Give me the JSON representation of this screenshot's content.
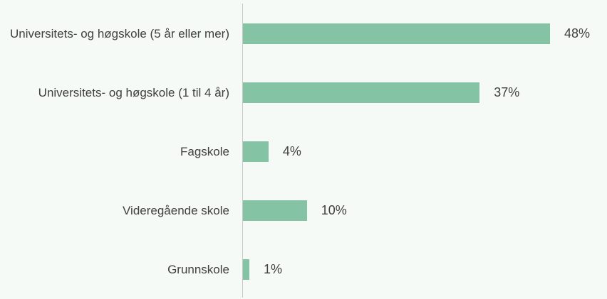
{
  "chart_data": {
    "type": "bar",
    "orientation": "horizontal",
    "color": "#84c4a4",
    "categories": [
      "Universitets- og høgskole (5 år eller mer)",
      "Universitets- og høgskole (1 til 4 år)",
      "Fagskole",
      "Videregående skole",
      "Grunnskole"
    ],
    "values": [
      48,
      37,
      4,
      10,
      1
    ],
    "value_labels": [
      "48%",
      "37%",
      "4%",
      "10%",
      "1%"
    ]
  }
}
